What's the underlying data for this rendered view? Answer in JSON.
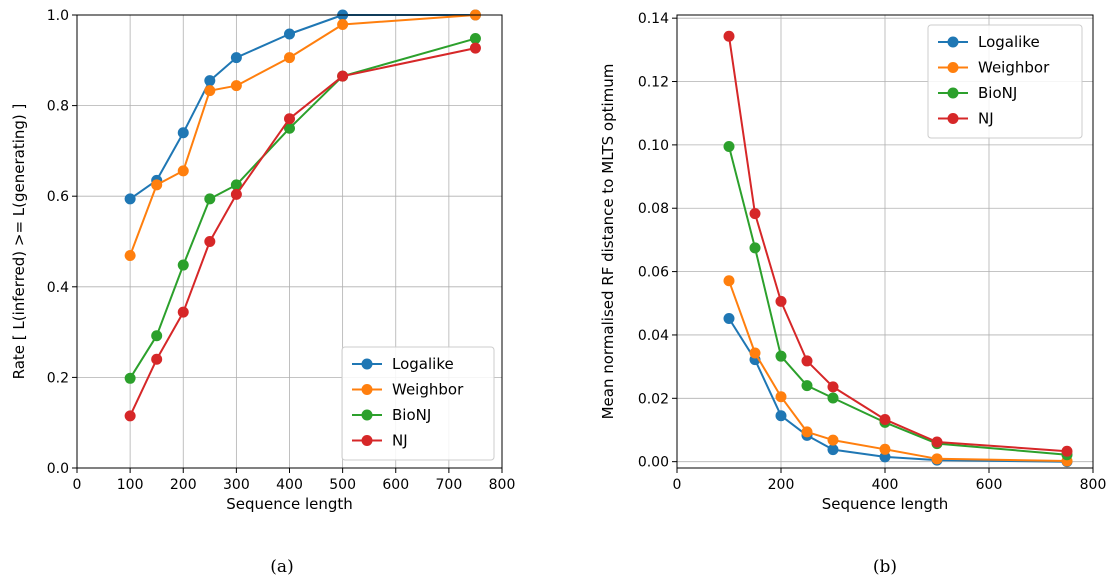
{
  "chart_data": [
    {
      "type": "line",
      "caption": "(a)",
      "xlabel": "Sequence length",
      "ylabel": "Rate [ L(inferred) >= L(generating) ]",
      "xlim": [
        0,
        800
      ],
      "ylim": [
        0,
        1.0
      ],
      "xticks": [
        0,
        100,
        200,
        300,
        400,
        500,
        600,
        700,
        800
      ],
      "yticks": [
        0.0,
        0.2,
        0.4,
        0.6,
        0.8,
        1.0
      ],
      "xtick_labels": [
        "0",
        "100",
        "200",
        "300",
        "400",
        "500",
        "600",
        "700",
        "800"
      ],
      "ytick_labels": [
        "0.0",
        "0.2",
        "0.4",
        "0.6",
        "0.8",
        "1.0"
      ],
      "grid": true,
      "legend_position": "bottom-right",
      "x": [
        100,
        150,
        200,
        250,
        300,
        400,
        500,
        750
      ],
      "series": [
        {
          "name": "Logalike",
          "color": "#1f77b4",
          "values": [
            0.594,
            0.635,
            0.74,
            0.855,
            0.906,
            0.958,
            1.0,
            1.0
          ]
        },
        {
          "name": "Weighbor",
          "color": "#ff7f0e",
          "values": [
            0.469,
            0.625,
            0.656,
            0.833,
            0.844,
            0.906,
            0.979,
            1.0
          ]
        },
        {
          "name": "BioNJ",
          "color": "#2ca02c",
          "values": [
            0.198,
            0.292,
            0.448,
            0.594,
            0.625,
            0.75,
            0.865,
            0.948
          ]
        },
        {
          "name": "NJ",
          "color": "#d62728",
          "values": [
            0.115,
            0.24,
            0.344,
            0.5,
            0.604,
            0.771,
            0.865,
            0.927
          ]
        }
      ]
    },
    {
      "type": "line",
      "caption": "(b)",
      "xlabel": "Sequence length",
      "ylabel": "Mean normalised RF distance to MLTS optimum",
      "xlim": [
        0,
        800
      ],
      "ylim": [
        -0.002,
        0.141
      ],
      "xticks": [
        0,
        200,
        400,
        600,
        800
      ],
      "yticks": [
        0.0,
        0.02,
        0.04,
        0.06,
        0.08,
        0.1,
        0.12,
        0.14
      ],
      "xtick_labels": [
        "0",
        "200",
        "400",
        "600",
        "800"
      ],
      "ytick_labels": [
        "0.00",
        "0.02",
        "0.04",
        "0.06",
        "0.08",
        "0.10",
        "0.12",
        "0.14"
      ],
      "grid": true,
      "legend_position": "top-right",
      "x": [
        100,
        150,
        200,
        250,
        300,
        400,
        500,
        750
      ],
      "series": [
        {
          "name": "Logalike",
          "color": "#1f77b4",
          "values": [
            0.0452,
            0.0322,
            0.0145,
            0.0083,
            0.0038,
            0.0015,
            0.0005,
            0.0
          ]
        },
        {
          "name": "Weighbor",
          "color": "#ff7f0e",
          "values": [
            0.0571,
            0.0343,
            0.0205,
            0.0094,
            0.0068,
            0.0039,
            0.0009,
            0.0002
          ]
        },
        {
          "name": "BioNJ",
          "color": "#2ca02c",
          "values": [
            0.0995,
            0.0675,
            0.0333,
            0.024,
            0.0201,
            0.0124,
            0.0057,
            0.0022
          ]
        },
        {
          "name": "NJ",
          "color": "#d62728",
          "values": [
            0.1343,
            0.0783,
            0.0506,
            0.0318,
            0.0236,
            0.0133,
            0.0062,
            0.0033
          ]
        }
      ]
    }
  ]
}
